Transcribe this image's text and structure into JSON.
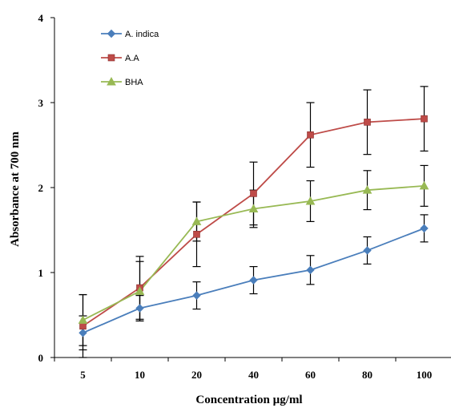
{
  "chart_data": {
    "type": "line",
    "title": "",
    "xlabel": "Concentration µg/ml",
    "ylabel": "Absorbance at 700 nm",
    "categories": [
      "5",
      "10",
      "20",
      "40",
      "60",
      "80",
      "100"
    ],
    "ylim": [
      0,
      4
    ],
    "yticks": [
      "0",
      "1",
      "2",
      "3",
      "4"
    ],
    "grid": false,
    "legend_position": "top-left",
    "series": [
      {
        "name": "A. indica",
        "color": "#4a7ebb",
        "marker": "diamond",
        "values": [
          0.29,
          0.58,
          0.73,
          0.91,
          1.03,
          1.26,
          1.52
        ],
        "errors": [
          0.2,
          0.15,
          0.16,
          0.16,
          0.17,
          0.16,
          0.16
        ]
      },
      {
        "name": "A.A",
        "color": "#be4b48",
        "marker": "square",
        "values": [
          0.37,
          0.82,
          1.45,
          1.93,
          2.62,
          2.77,
          2.81
        ],
        "errors": [
          0.37,
          0.37,
          0.38,
          0.37,
          0.38,
          0.38,
          0.38
        ]
      },
      {
        "name": "BHA",
        "color": "#98b954",
        "marker": "triangle",
        "values": [
          0.44,
          0.78,
          1.6,
          1.75,
          1.84,
          1.97,
          2.02
        ],
        "errors": [
          0.3,
          0.35,
          0.23,
          0.22,
          0.24,
          0.23,
          0.24
        ]
      }
    ]
  }
}
